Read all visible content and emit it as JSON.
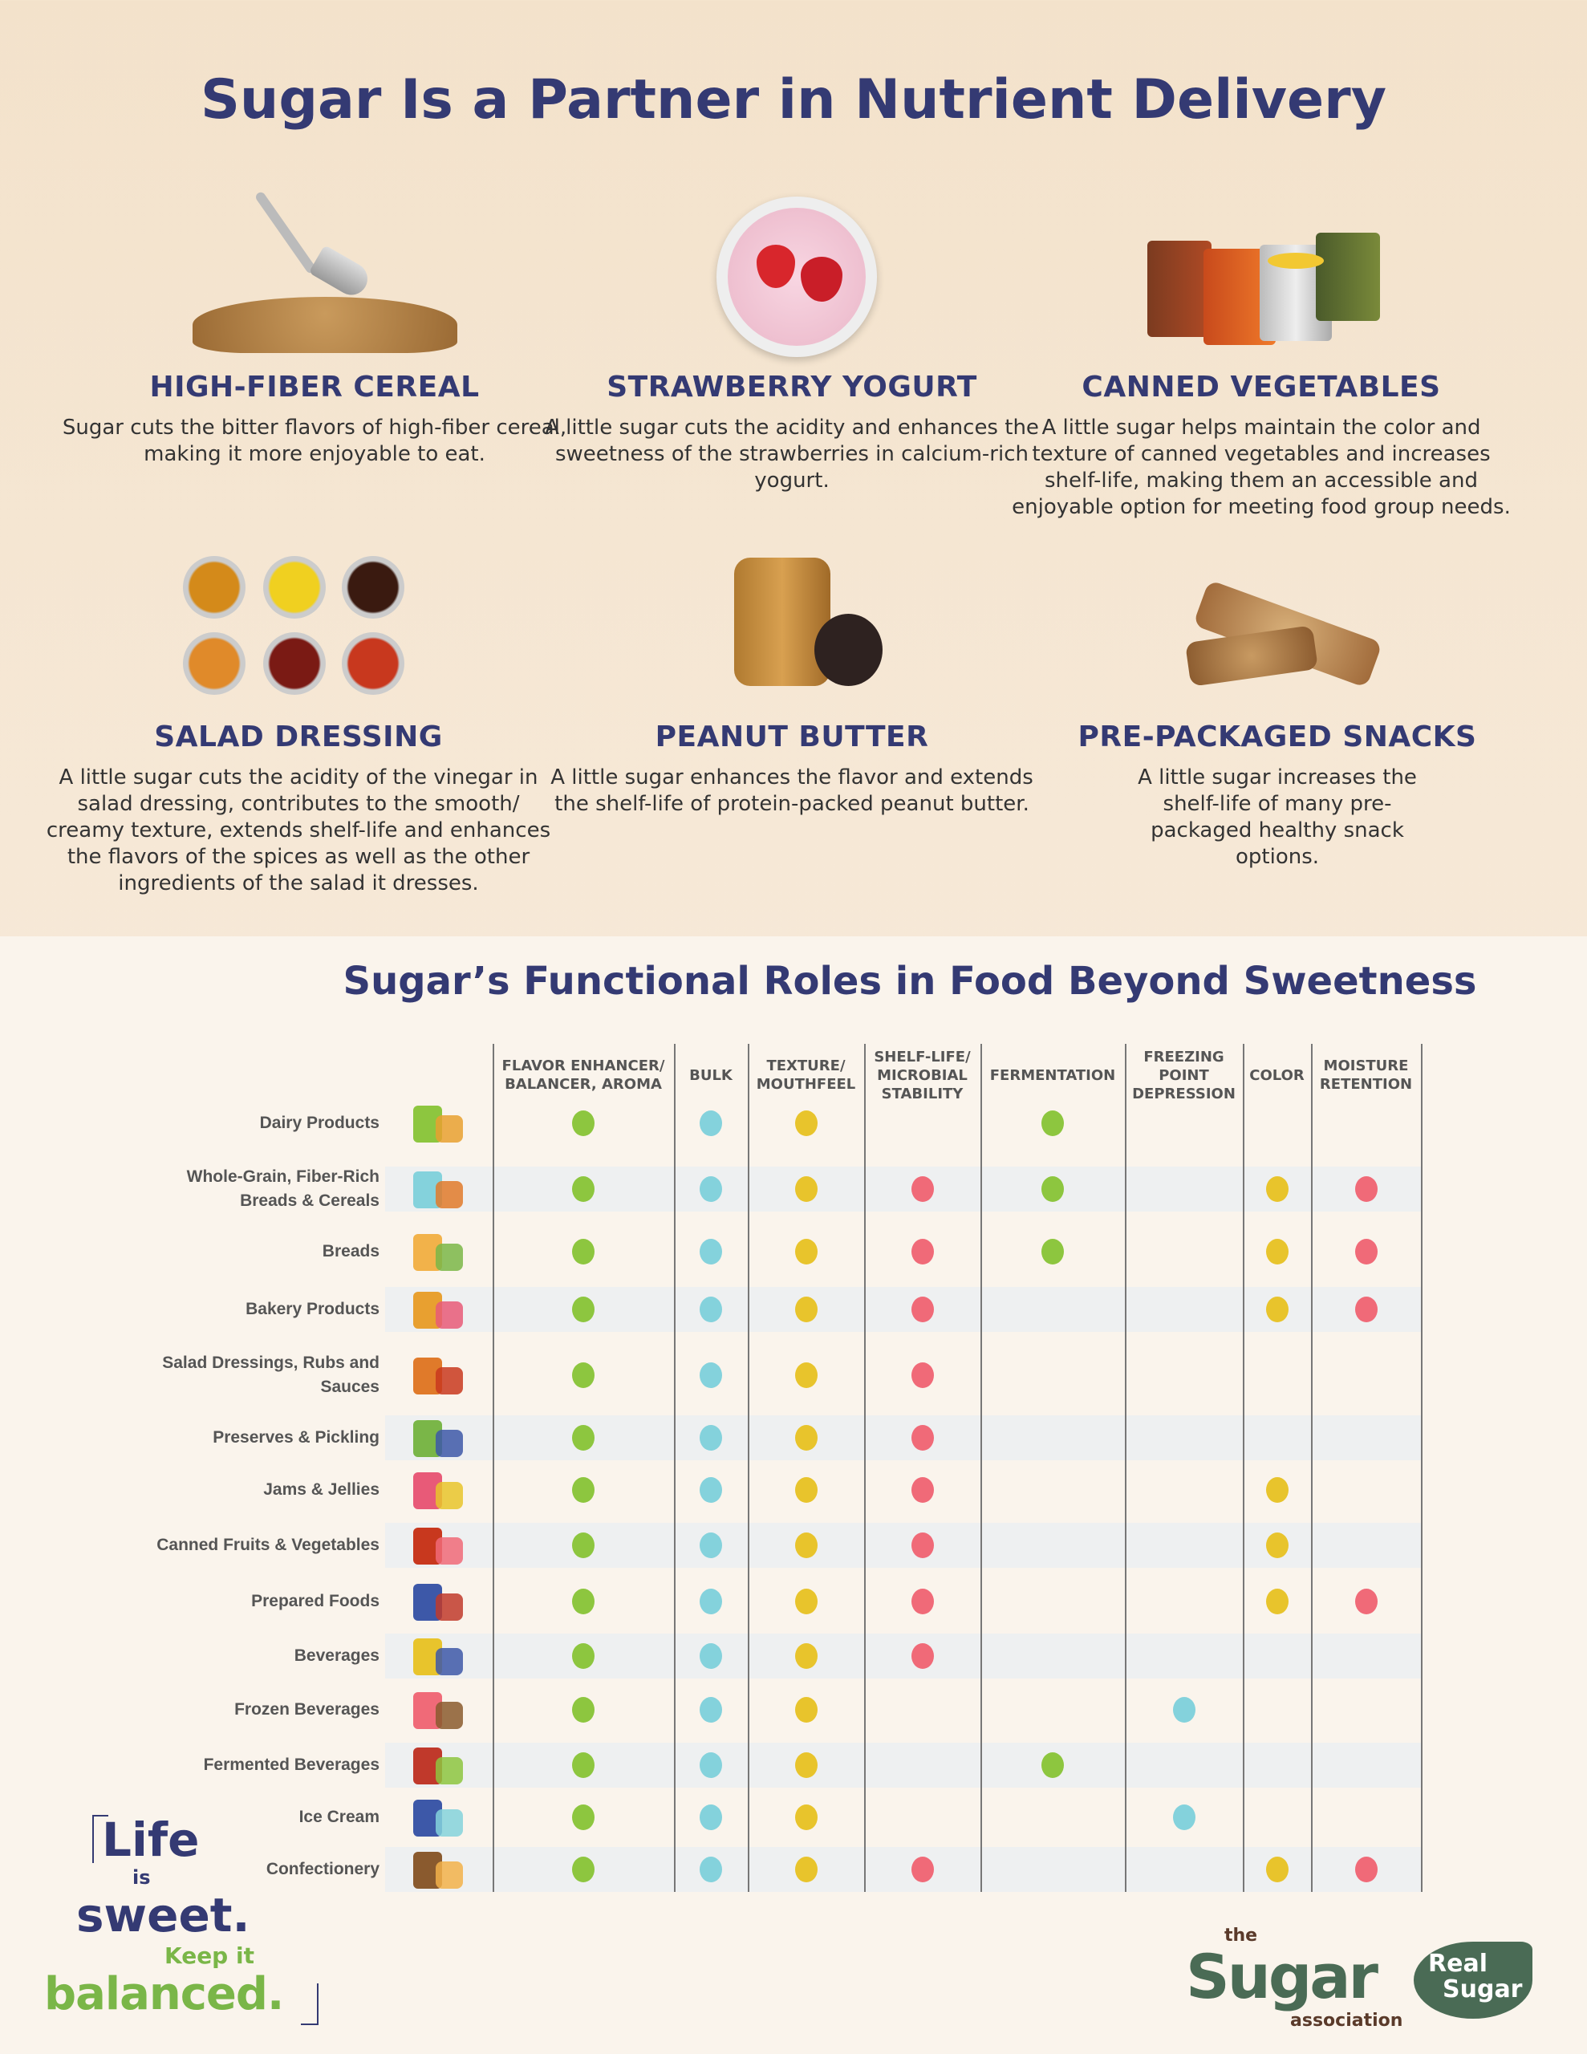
{
  "title": "Sugar Is a Partner in Nutrient Delivery",
  "cards": [
    {
      "heading": "HIGH-FIBER CEREAL",
      "text": "Sugar cuts the bitter flavors of high-fiber cereal, making it more enjoyable to eat."
    },
    {
      "heading": "STRAWBERRY YOGURT",
      "text": "A little sugar cuts the acidity and enhances the sweetness of the strawberries in calcium-rich yogurt."
    },
    {
      "heading": "CANNED VEGETABLES",
      "text": "A little sugar helps maintain the color and texture of canned vegetables and increases shelf-life, making them an accessible and enjoyable option for meeting food group needs."
    },
    {
      "heading": "SALAD DRESSING",
      "text": "A little sugar cuts the acidity of the vinegar in salad dressing, contributes to the smooth/ creamy texture, extends shelf-life and enhances the flavors of the spices as well as the other ingredients of the salad it dresses."
    },
    {
      "heading": "PEANUT BUTTER",
      "text": "A little sugar enhances the flavor and extends the shelf-life of protein-packed peanut butter."
    },
    {
      "heading": "PRE-PACKAGED SNACKS",
      "text": "A little sugar increases the shelf-life of many pre-packaged healthy snack options."
    }
  ],
  "table": {
    "title": "Sugar’s Functional Roles in Food Beyond Sweetness",
    "columns": [
      {
        "label": "FLAVOR ENHANCER/ BALANCER, AROMA",
        "color": "#8dc63f"
      },
      {
        "label": "BULK",
        "color": "#84d2dc"
      },
      {
        "label": "TEXTURE/ MOUTHFEEL",
        "color": "#e8c42c"
      },
      {
        "label": "SHELF-LIFE/ MICROBIAL STABILITY",
        "color": "#f06a78"
      },
      {
        "label": "FERMENTATION",
        "color": "#8dc63f"
      },
      {
        "label": "FREEZING POINT DEPRESSION",
        "color": "#84d2dc"
      },
      {
        "label": "COLOR",
        "color": "#e8c42c"
      },
      {
        "label": "MOISTURE RETENTION",
        "color": "#f06a78"
      }
    ],
    "rows": [
      {
        "label": "Dairy Products",
        "icon": "milk-carton-icon",
        "marks": [
          1,
          1,
          1,
          0,
          1,
          0,
          0,
          0
        ]
      },
      {
        "label": "Whole-Grain, Fiber-Rich Breads & Cereals",
        "icon": "cereal-bowl-icon",
        "marks": [
          1,
          1,
          1,
          1,
          1,
          0,
          1,
          1
        ]
      },
      {
        "label": "Breads",
        "icon": "bread-icon",
        "marks": [
          1,
          1,
          1,
          1,
          1,
          0,
          1,
          1
        ]
      },
      {
        "label": "Bakery Products",
        "icon": "muffin-icon",
        "marks": [
          1,
          1,
          1,
          1,
          0,
          0,
          1,
          1
        ]
      },
      {
        "label": "Salad Dressings, Rubs and Sauces",
        "icon": "sauce-icon",
        "marks": [
          1,
          1,
          1,
          1,
          0,
          0,
          0,
          0
        ]
      },
      {
        "label": "Preserves & Pickling",
        "icon": "pickle-icon",
        "marks": [
          1,
          1,
          1,
          1,
          0,
          0,
          0,
          0
        ]
      },
      {
        "label": "Jams & Jellies",
        "icon": "jam-jar-icon",
        "marks": [
          1,
          1,
          1,
          1,
          0,
          0,
          1,
          0
        ]
      },
      {
        "label": "Canned Fruits & Vegetables",
        "icon": "can-icon",
        "marks": [
          1,
          1,
          1,
          1,
          0,
          0,
          1,
          0
        ]
      },
      {
        "label": "Prepared Foods",
        "icon": "food-container-icon",
        "marks": [
          1,
          1,
          1,
          1,
          0,
          0,
          1,
          1
        ]
      },
      {
        "label": "Beverages",
        "icon": "beverage-icon",
        "marks": [
          1,
          1,
          1,
          1,
          0,
          0,
          0,
          0
        ]
      },
      {
        "label": "Frozen Beverages",
        "icon": "smoothie-icon",
        "marks": [
          1,
          1,
          1,
          0,
          0,
          1,
          0,
          0
        ]
      },
      {
        "label": "Fermented Beverages",
        "icon": "wine-beer-icon",
        "marks": [
          1,
          1,
          1,
          0,
          1,
          0,
          0,
          0
        ]
      },
      {
        "label": "Ice Cream",
        "icon": "ice-cream-icon",
        "marks": [
          1,
          1,
          1,
          0,
          0,
          1,
          0,
          0
        ]
      },
      {
        "label": "Confectionery",
        "icon": "candy-icon",
        "marks": [
          1,
          1,
          1,
          1,
          0,
          0,
          1,
          1
        ]
      }
    ]
  },
  "logos": {
    "life_is_sweet": "Life is sweet. Keep it balanced.",
    "sugar_association": "the Sugar association",
    "real_sugar": "Real Sugar"
  },
  "colors": {
    "navy": "#343a73",
    "green": "#8dc63f",
    "logo_green": "#4a6b55"
  }
}
